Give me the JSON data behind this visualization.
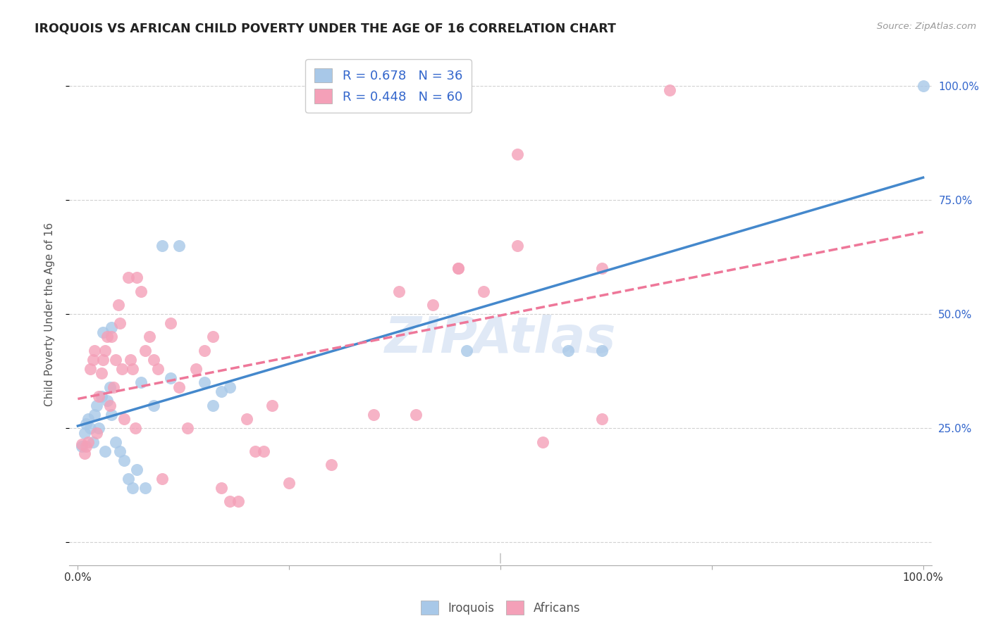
{
  "title": "IROQUOIS VS AFRICAN CHILD POVERTY UNDER THE AGE OF 16 CORRELATION CHART",
  "source": "Source: ZipAtlas.com",
  "ylabel": "Child Poverty Under the Age of 16",
  "iroquois_color": "#a8c8e8",
  "africans_color": "#f4a0b8",
  "iroquois_line_color": "#4488cc",
  "africans_line_color": "#ee7799",
  "iroquois_R": 0.678,
  "iroquois_N": 36,
  "africans_R": 0.448,
  "africans_N": 60,
  "legend_text_color": "#3366cc",
  "watermark": "ZIPAtlas",
  "iroquois_scatter": [
    [
      0.005,
      0.21
    ],
    [
      0.008,
      0.24
    ],
    [
      0.01,
      0.26
    ],
    [
      0.012,
      0.27
    ],
    [
      0.015,
      0.25
    ],
    [
      0.018,
      0.22
    ],
    [
      0.02,
      0.28
    ],
    [
      0.022,
      0.3
    ],
    [
      0.025,
      0.25
    ],
    [
      0.028,
      0.32
    ],
    [
      0.03,
      0.46
    ],
    [
      0.032,
      0.2
    ],
    [
      0.035,
      0.31
    ],
    [
      0.038,
      0.34
    ],
    [
      0.04,
      0.28
    ],
    [
      0.045,
      0.22
    ],
    [
      0.05,
      0.2
    ],
    [
      0.055,
      0.18
    ],
    [
      0.06,
      0.14
    ],
    [
      0.065,
      0.12
    ],
    [
      0.07,
      0.16
    ],
    [
      0.075,
      0.35
    ],
    [
      0.08,
      0.12
    ],
    [
      0.09,
      0.3
    ],
    [
      0.1,
      0.65
    ],
    [
      0.11,
      0.36
    ],
    [
      0.12,
      0.65
    ],
    [
      0.15,
      0.35
    ],
    [
      0.16,
      0.3
    ],
    [
      0.17,
      0.33
    ],
    [
      0.18,
      0.34
    ],
    [
      0.04,
      0.47
    ],
    [
      0.46,
      0.42
    ],
    [
      0.58,
      0.42
    ],
    [
      0.62,
      0.42
    ],
    [
      1.0,
      1.0
    ]
  ],
  "africans_scatter": [
    [
      0.005,
      0.215
    ],
    [
      0.008,
      0.195
    ],
    [
      0.01,
      0.21
    ],
    [
      0.012,
      0.22
    ],
    [
      0.015,
      0.38
    ],
    [
      0.018,
      0.4
    ],
    [
      0.02,
      0.42
    ],
    [
      0.022,
      0.24
    ],
    [
      0.025,
      0.32
    ],
    [
      0.028,
      0.37
    ],
    [
      0.03,
      0.4
    ],
    [
      0.032,
      0.42
    ],
    [
      0.035,
      0.45
    ],
    [
      0.038,
      0.3
    ],
    [
      0.04,
      0.45
    ],
    [
      0.042,
      0.34
    ],
    [
      0.045,
      0.4
    ],
    [
      0.048,
      0.52
    ],
    [
      0.05,
      0.48
    ],
    [
      0.052,
      0.38
    ],
    [
      0.055,
      0.27
    ],
    [
      0.06,
      0.58
    ],
    [
      0.062,
      0.4
    ],
    [
      0.065,
      0.38
    ],
    [
      0.068,
      0.25
    ],
    [
      0.07,
      0.58
    ],
    [
      0.075,
      0.55
    ],
    [
      0.08,
      0.42
    ],
    [
      0.085,
      0.45
    ],
    [
      0.09,
      0.4
    ],
    [
      0.095,
      0.38
    ],
    [
      0.1,
      0.14
    ],
    [
      0.11,
      0.48
    ],
    [
      0.12,
      0.34
    ],
    [
      0.13,
      0.25
    ],
    [
      0.14,
      0.38
    ],
    [
      0.15,
      0.42
    ],
    [
      0.16,
      0.45
    ],
    [
      0.17,
      0.12
    ],
    [
      0.18,
      0.09
    ],
    [
      0.19,
      0.09
    ],
    [
      0.2,
      0.27
    ],
    [
      0.21,
      0.2
    ],
    [
      0.22,
      0.2
    ],
    [
      0.23,
      0.3
    ],
    [
      0.25,
      0.13
    ],
    [
      0.3,
      0.17
    ],
    [
      0.35,
      0.28
    ],
    [
      0.38,
      0.55
    ],
    [
      0.42,
      0.52
    ],
    [
      0.45,
      0.6
    ],
    [
      0.48,
      0.55
    ],
    [
      0.52,
      0.65
    ],
    [
      0.55,
      0.22
    ],
    [
      0.62,
      0.27
    ],
    [
      0.52,
      0.85
    ],
    [
      0.62,
      0.6
    ],
    [
      0.4,
      0.28
    ],
    [
      0.45,
      0.6
    ],
    [
      0.7,
      0.99
    ]
  ],
  "background_color": "#ffffff",
  "grid_color": "#cccccc",
  "xlim": [
    -0.01,
    1.01
  ],
  "ylim": [
    -0.05,
    1.05
  ]
}
